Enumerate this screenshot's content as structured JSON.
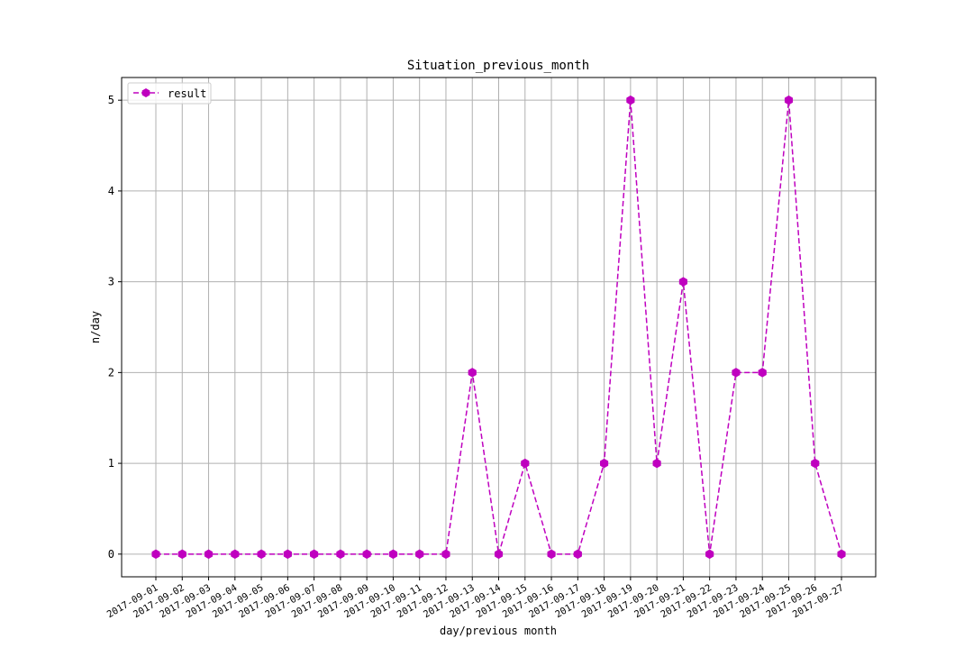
{
  "chart_data": {
    "type": "line",
    "title": "Situation_previous_month",
    "xlabel": "day/previous month",
    "ylabel": "n/day",
    "ylim": [
      -0.25,
      5.25
    ],
    "yticks": [
      0,
      1,
      2,
      3,
      4,
      5
    ],
    "grid": true,
    "legend_position": "upper-left",
    "categories": [
      "2017-09-01",
      "2017-09-02",
      "2017-09-03",
      "2017-09-04",
      "2017-09-05",
      "2017-09-06",
      "2017-09-07",
      "2017-09-08",
      "2017-09-09",
      "2017-09-10",
      "2017-09-11",
      "2017-09-12",
      "2017-09-13",
      "2017-09-14",
      "2017-09-15",
      "2017-09-16",
      "2017-09-17",
      "2017-09-18",
      "2017-09-19",
      "2017-09-20",
      "2017-09-21",
      "2017-09-22",
      "2017-09-23",
      "2017-09-24",
      "2017-09-25",
      "2017-09-26",
      "2017-09-27"
    ],
    "series": [
      {
        "name": "result",
        "color": "#bf00bf",
        "line_style": "dashed",
        "marker": "hexagon",
        "values": [
          0,
          0,
          0,
          0,
          0,
          0,
          0,
          0,
          0,
          0,
          0,
          0,
          2,
          0,
          1,
          0,
          0,
          1,
          5,
          1,
          3,
          0,
          2,
          2,
          5,
          1,
          0
        ]
      }
    ]
  }
}
